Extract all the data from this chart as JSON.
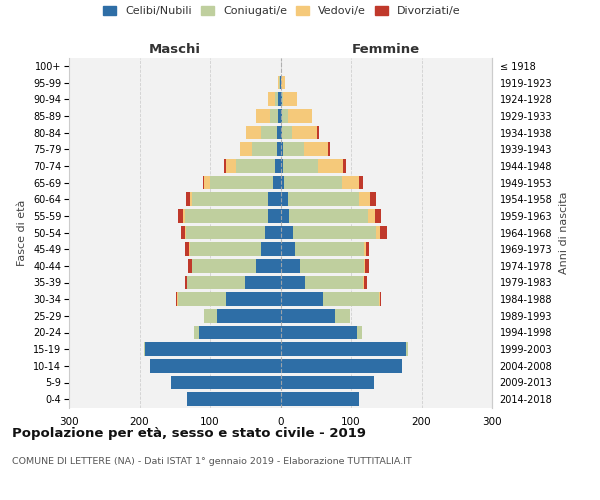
{
  "age_groups": [
    "0-4",
    "5-9",
    "10-14",
    "15-19",
    "20-24",
    "25-29",
    "30-34",
    "35-39",
    "40-44",
    "45-49",
    "50-54",
    "55-59",
    "60-64",
    "65-69",
    "70-74",
    "75-79",
    "80-84",
    "85-89",
    "90-94",
    "95-99",
    "100+"
  ],
  "birth_years": [
    "2014-2018",
    "2009-2013",
    "2004-2008",
    "1999-2003",
    "1994-1998",
    "1989-1993",
    "1984-1988",
    "1979-1983",
    "1974-1978",
    "1969-1973",
    "1964-1968",
    "1959-1963",
    "1954-1958",
    "1949-1953",
    "1944-1948",
    "1939-1943",
    "1934-1938",
    "1929-1933",
    "1924-1928",
    "1919-1923",
    "≤ 1918"
  ],
  "colors": {
    "celibi": "#2E6EA6",
    "coniugati": "#BFCF9E",
    "vedovi": "#F5C97A",
    "divorziati": "#C0392B"
  },
  "maschi_celibi": [
    132,
    155,
    185,
    192,
    115,
    90,
    78,
    50,
    35,
    28,
    22,
    18,
    18,
    10,
    8,
    5,
    5,
    3,
    3,
    1,
    0
  ],
  "maschi_coniugati": [
    0,
    0,
    0,
    2,
    8,
    18,
    68,
    82,
    90,
    100,
    112,
    118,
    108,
    90,
    55,
    35,
    22,
    12,
    5,
    1,
    0
  ],
  "maschi_vedovi": [
    0,
    0,
    0,
    0,
    0,
    0,
    1,
    1,
    1,
    2,
    2,
    2,
    3,
    8,
    15,
    18,
    22,
    20,
    10,
    2,
    0
  ],
  "maschi_divorziati": [
    0,
    0,
    0,
    0,
    0,
    0,
    1,
    3,
    5,
    5,
    5,
    8,
    5,
    2,
    2,
    0,
    0,
    0,
    0,
    0,
    0
  ],
  "femmine_nubili": [
    112,
    132,
    172,
    178,
    108,
    78,
    60,
    35,
    28,
    20,
    18,
    12,
    10,
    5,
    3,
    3,
    2,
    2,
    2,
    1,
    0
  ],
  "femmine_coniugate": [
    0,
    0,
    0,
    3,
    8,
    20,
    80,
    82,
    90,
    98,
    118,
    112,
    102,
    82,
    50,
    30,
    15,
    8,
    2,
    0,
    0
  ],
  "femmine_vedove": [
    0,
    0,
    0,
    0,
    0,
    0,
    1,
    1,
    2,
    3,
    5,
    10,
    15,
    25,
    35,
    35,
    35,
    35,
    20,
    5,
    0
  ],
  "femmine_divorziate": [
    0,
    0,
    0,
    0,
    0,
    0,
    2,
    5,
    5,
    5,
    10,
    8,
    8,
    5,
    5,
    2,
    2,
    0,
    0,
    0,
    0
  ],
  "title": "Popolazione per età, sesso e stato civile - 2019",
  "subtitle": "COMUNE DI LETTERE (NA) - Dati ISTAT 1° gennaio 2019 - Elaborazione TUTTITALIA.IT",
  "label_maschi": "Maschi",
  "label_femmine": "Femmine",
  "ylabel_left": "Fasce di età",
  "ylabel_right": "Anni di nascita",
  "legend_labels": [
    "Celibi/Nubili",
    "Coniugati/e",
    "Vedovi/e",
    "Divorziati/e"
  ],
  "xlim": 300,
  "bg_color": "#ffffff",
  "ax_bg_color": "#F2F2F2",
  "grid_color": "#cccccc"
}
